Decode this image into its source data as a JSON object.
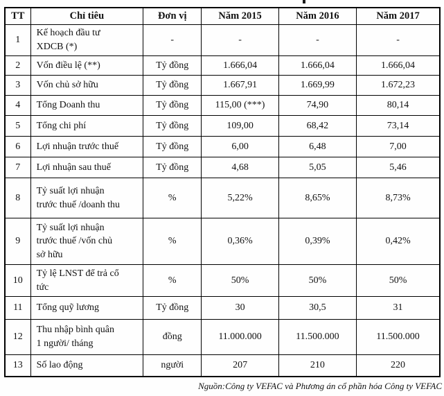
{
  "table": {
    "columns": [
      "TT",
      "Chỉ tiêu",
      "Đơn vị",
      "Năm 2015",
      "Năm 2016",
      "Năm 2017"
    ],
    "rows": [
      {
        "tt": "1",
        "label": "Kế hoạch đầu tư\nXDCB (*)",
        "unit": "-",
        "y2015": "-",
        "y2016": "-",
        "y2017": "-"
      },
      {
        "tt": "2",
        "label": "Vốn điều lệ (**)",
        "unit": "Tỷ đồng",
        "y2015": "1.666,04",
        "y2016": "1.666,04",
        "y2017": "1.666,04"
      },
      {
        "tt": "3",
        "label": "Vốn chủ sở hữu",
        "unit": "Tỷ đồng",
        "y2015": "1.667,91",
        "y2016": "1.669,99",
        "y2017": "1.672,23"
      },
      {
        "tt": "4",
        "label": "Tổng Doanh thu",
        "unit": "Tỷ đồng",
        "y2015": "115,00 (***)",
        "y2016": "74,90",
        "y2017": "80,14"
      },
      {
        "tt": "5",
        "label": "Tổng chi phí",
        "unit": "Tỷ đồng",
        "y2015": "109,00",
        "y2016": "68,42",
        "y2017": "73,14"
      },
      {
        "tt": "6",
        "label": "Lợi nhuận trước thuế",
        "unit": "Tỷ đồng",
        "y2015": "6,00",
        "y2016": "6,48",
        "y2017": "7,00"
      },
      {
        "tt": "7",
        "label": "Lợi nhuận sau thuế",
        "unit": "Tỷ đồng",
        "y2015": "4,68",
        "y2016": "5,05",
        "y2017": "5,46"
      },
      {
        "tt": "8",
        "label": "Tỷ suất lợi nhuận\ntrước thuế /doanh thu",
        "unit": "%",
        "y2015": "5,22%",
        "y2016": "8,65%",
        "y2017": "8,73%"
      },
      {
        "tt": "9",
        "label": "Tỷ suất lợi nhuận\ntrước thuế /vốn chủ\nsở hữu",
        "unit": "%",
        "y2015": "0,36%",
        "y2016": "0,39%",
        "y2017": "0,42%"
      },
      {
        "tt": "10",
        "label": "Tỷ lệ LNST để trả cổ\ntức",
        "unit": "%",
        "y2015": "50%",
        "y2016": "50%",
        "y2017": "50%"
      },
      {
        "tt": "11",
        "label": "Tổng quỹ lương",
        "unit": "Tỷ đồng",
        "y2015": "30",
        "y2016": "30,5",
        "y2017": "31"
      },
      {
        "tt": "12",
        "label": "Thu nhập bình quân\n1 người/ tháng",
        "unit": "đồng",
        "y2015": "11.000.000",
        "y2016": "11.500.000",
        "y2017": "11.500.000"
      },
      {
        "tt": "13",
        "label": "Số lao động",
        "unit": "người",
        "y2015": "207",
        "y2016": "210",
        "y2017": "220"
      }
    ]
  },
  "footer": {
    "source_note": "Nguồn:Công ty VEFAC và  Phương án cổ phần hóa Công ty VEFAC"
  }
}
